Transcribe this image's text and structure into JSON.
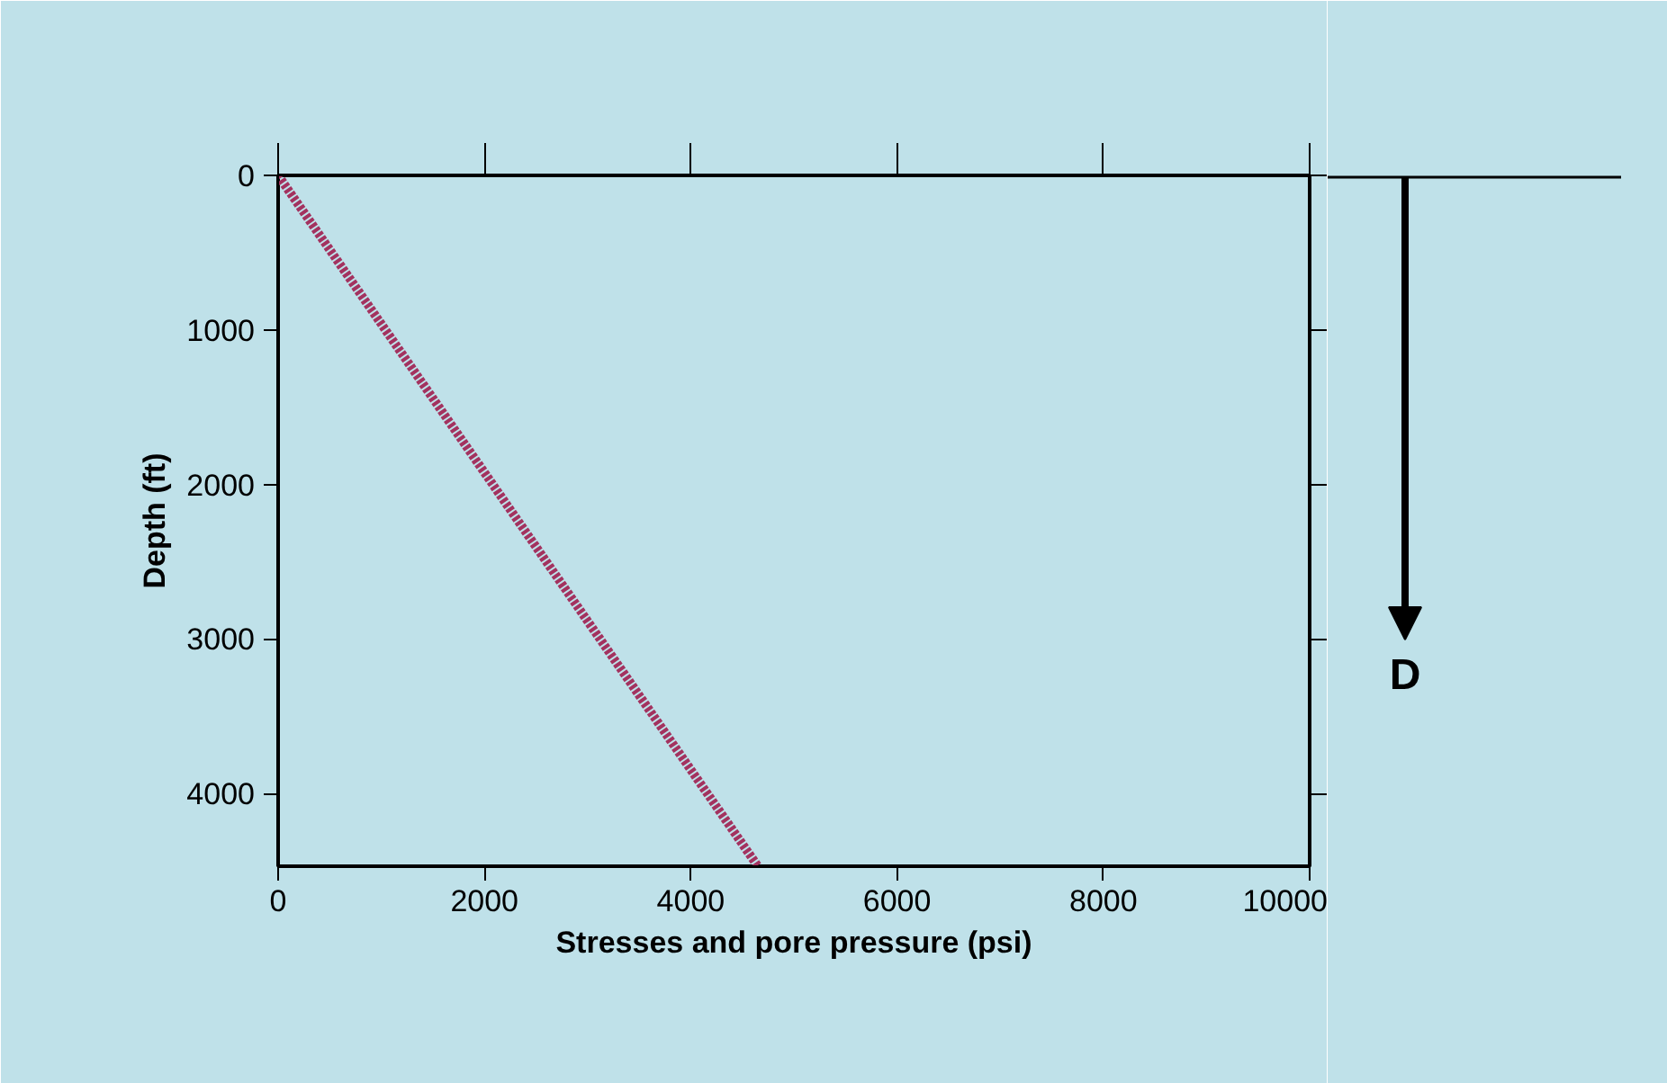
{
  "chart_data": {
    "type": "line",
    "xlabel": "Stresses and pore pressure (psi)",
    "ylabel": "Depth (ft)",
    "x": [
      0,
      4650
    ],
    "series": [
      {
        "color": "#a3325f",
        "values": [
          0,
          4470
        ]
      }
    ],
    "xlim": [
      0,
      10000
    ],
    "ylim": [
      4470,
      0
    ],
    "xticks": [
      0,
      2000,
      4000,
      6000,
      8000,
      10000
    ],
    "yticks": [
      0,
      1000,
      2000,
      3000,
      4000
    ],
    "grid": false,
    "line_style": "dotted",
    "marker": "none",
    "annotations": [
      "D"
    ]
  }
}
